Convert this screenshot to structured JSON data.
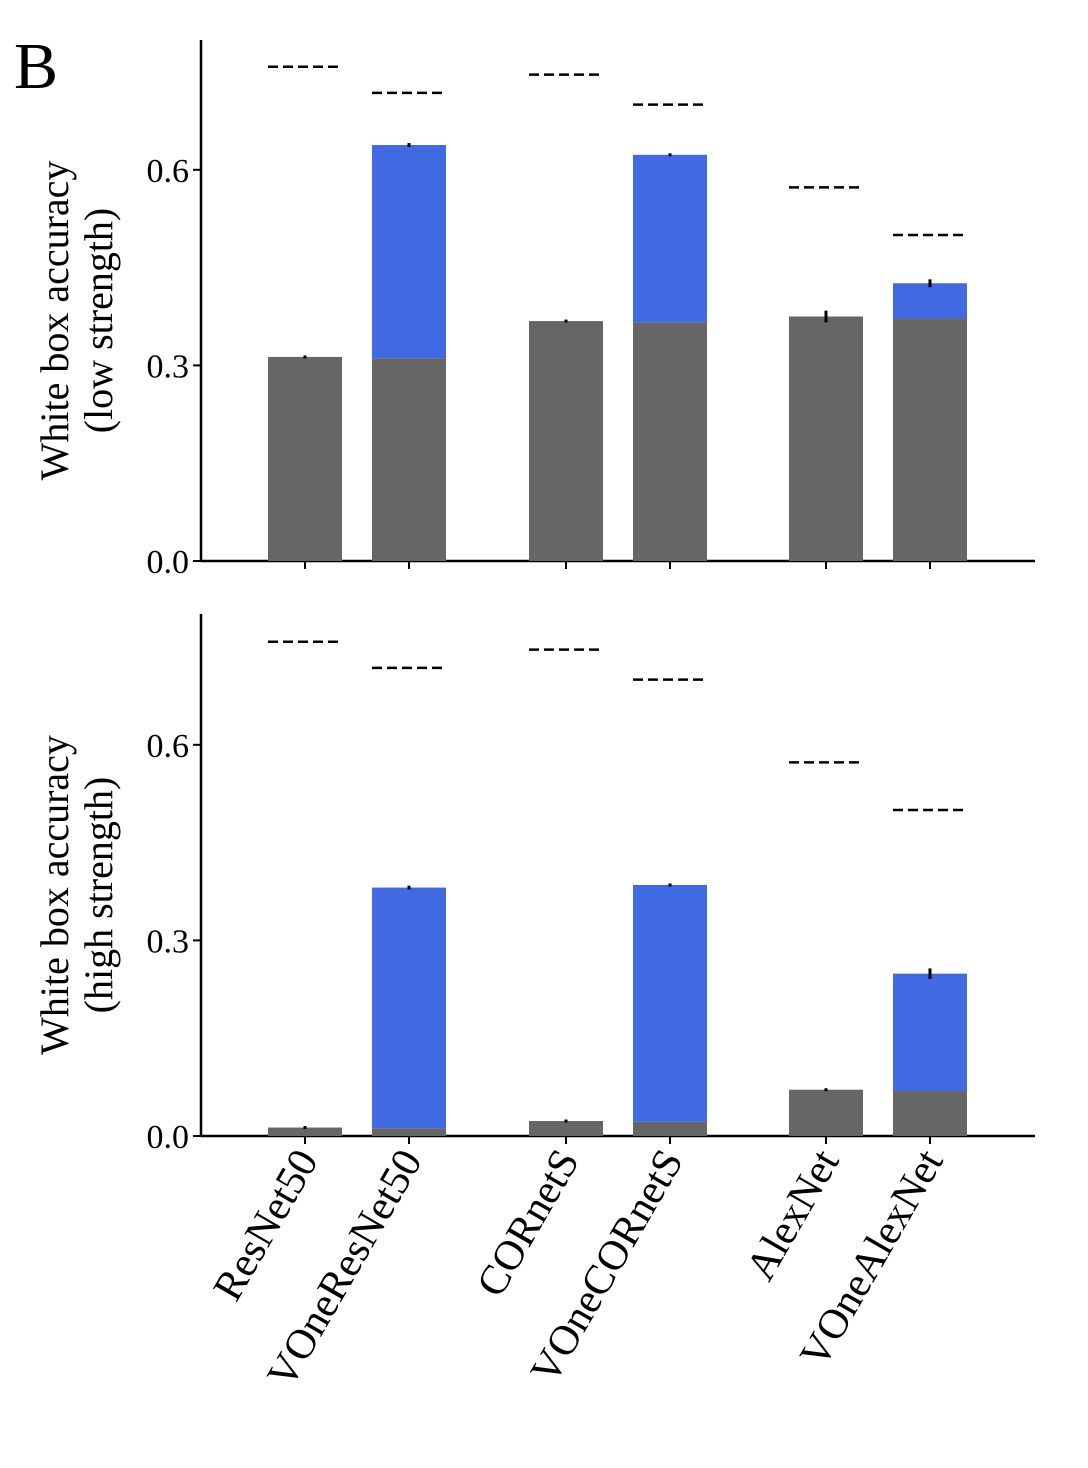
{
  "panel_label": "B",
  "colors": {
    "base": "#666666",
    "gain": "#4169e1",
    "line": "#000000"
  },
  "categories": [
    "ResNet50",
    "VOneResNet50",
    "CORnetS",
    "VOneCORnetS",
    "AlexNet",
    "VOneAlexNet"
  ],
  "chart_data": [
    {
      "type": "bar",
      "ylabel_lines": [
        "White box accuracy",
        "(low strength)"
      ],
      "ylim": [
        0,
        0.8
      ],
      "yticks": [
        0.0,
        0.3,
        0.6
      ],
      "ytick_labels": [
        "0.0",
        "0.3",
        "0.6"
      ],
      "categories": [
        "ResNet50",
        "VOneResNet50",
        "CORnetS",
        "VOneCORnetS",
        "AlexNet",
        "VOneAlexNet"
      ],
      "series": [
        {
          "values": [
            0.313,
            0.311,
            0.368,
            0.366,
            0.375,
            0.372
          ]
        },
        {
          "values": [
            0.0,
            0.327,
            0.0,
            0.257,
            0.0,
            0.054
          ]
        }
      ],
      "totals": [
        0.313,
        0.638,
        0.368,
        0.623,
        0.375,
        0.426
      ],
      "errors": [
        0.002,
        0.003,
        0.001,
        0.001,
        0.009,
        0.006
      ],
      "dashed_levels": [
        0.758,
        0.718,
        0.746,
        0.7,
        0.573,
        0.5
      ],
      "grid": false
    },
    {
      "type": "bar",
      "ylabel_lines": [
        "White box accuracy",
        "(high strength)"
      ],
      "ylim": [
        0,
        0.8
      ],
      "yticks": [
        0.0,
        0.3,
        0.6
      ],
      "ytick_labels": [
        "0.0",
        "0.3",
        "0.6"
      ],
      "categories": [
        "ResNet50",
        "VOneResNet50",
        "CORnetS",
        "VOneCORnetS",
        "AlexNet",
        "VOneAlexNet"
      ],
      "series": [
        {
          "values": [
            0.013,
            0.012,
            0.023,
            0.022,
            0.071,
            0.069
          ]
        },
        {
          "values": [
            0.0,
            0.369,
            0.0,
            0.363,
            0.0,
            0.18
          ]
        }
      ],
      "totals": [
        0.013,
        0.381,
        0.023,
        0.385,
        0.071,
        0.249
      ],
      "errors": [
        0.001,
        0.003,
        0.001,
        0.001,
        0.001,
        0.008
      ],
      "dashed_levels": [
        0.758,
        0.718,
        0.746,
        0.7,
        0.573,
        0.5
      ],
      "grid": false
    }
  ]
}
